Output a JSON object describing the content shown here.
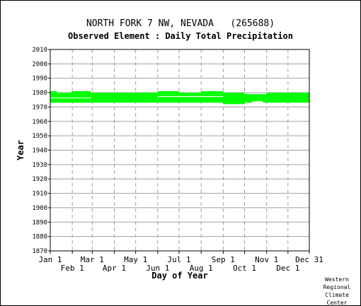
{
  "chart_data": {
    "type": "range",
    "title": "NORTH FORK 7 NW, NEVADA   (265688)",
    "subtitle": "Observed Element : Daily Total Precipitation",
    "xlabel": "Day of Year",
    "ylabel": "Year",
    "xlim": [
      1,
      365
    ],
    "ylim": [
      1870,
      2010
    ],
    "yticks": [
      1870,
      1880,
      1890,
      1900,
      1910,
      1920,
      1930,
      1940,
      1950,
      1960,
      1970,
      1980,
      1990,
      2000,
      2010
    ],
    "xticks_top": [
      {
        "label": "Jan 1",
        "day": 1
      },
      {
        "label": "Mar 1",
        "day": 60
      },
      {
        "label": "May 1",
        "day": 121
      },
      {
        "label": "Jul 1",
        "day": 182
      },
      {
        "label": "Sep 1",
        "day": 244
      },
      {
        "label": "Nov 1",
        "day": 305
      },
      {
        "label": "Dec 31",
        "day": 365
      }
    ],
    "xticks_bottom": [
      {
        "label": "Feb 1",
        "day": 32
      },
      {
        "label": "Apr 1",
        "day": 91
      },
      {
        "label": "Jun 1",
        "day": 152
      },
      {
        "label": "Aug 1",
        "day": 213
      },
      {
        "label": "Oct 1",
        "day": 274
      },
      {
        "label": "Dec 1",
        "day": 335
      }
    ],
    "grid": true,
    "series_color": "#00ff00",
    "coverage": [
      {
        "day_start": 1,
        "day_end": 10,
        "year_start": 1980,
        "year_end": 1981
      },
      {
        "day_start": 1,
        "day_end": 31,
        "year_start": 1979,
        "year_end": 1980
      },
      {
        "day_start": 1,
        "day_end": 58,
        "year_start": 1973,
        "year_end": 1979
      },
      {
        "day_start": 31,
        "day_end": 58,
        "year_start": 1979,
        "year_end": 1981
      },
      {
        "day_start": 58,
        "day_end": 152,
        "year_start": 1973,
        "year_end": 1980
      },
      {
        "day_start": 152,
        "day_end": 244,
        "year_start": 1973,
        "year_end": 1979
      },
      {
        "day_start": 152,
        "day_end": 182,
        "year_start": 1979,
        "year_end": 1981
      },
      {
        "day_start": 182,
        "day_end": 213,
        "year_start": 1979,
        "year_end": 1980
      },
      {
        "day_start": 213,
        "day_end": 244,
        "year_start": 1979,
        "year_end": 1981
      },
      {
        "day_start": 244,
        "day_end": 274,
        "year_start": 1972,
        "year_end": 1980
      },
      {
        "day_start": 274,
        "day_end": 305,
        "year_start": 1973,
        "year_end": 1979
      },
      {
        "day_start": 305,
        "day_end": 365,
        "year_start": 1973,
        "year_end": 1980
      }
    ],
    "gaps": [
      {
        "day_start": 1,
        "day_end": 58,
        "year_start": 1976.0,
        "year_end": 1976.5
      },
      {
        "day_start": 152,
        "day_end": 244,
        "year_start": 1977.0,
        "year_end": 1977.6
      },
      {
        "day_start": 285,
        "day_end": 300,
        "year_start": 1973.0,
        "year_end": 1974.0
      }
    ]
  },
  "credit": [
    "Western",
    "Regional",
    "Climate",
    "Center"
  ]
}
